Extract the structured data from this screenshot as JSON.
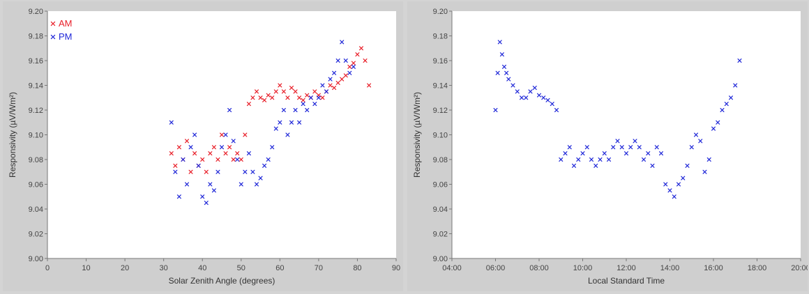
{
  "chart_data": [
    {
      "type": "scatter",
      "xlabel": "Solar Zenith Angle (degrees)",
      "ylabel": "Responsivity (µV/Wm²)",
      "xlim": [
        0,
        90
      ],
      "ylim": [
        9.0,
        9.2
      ],
      "xticks": [
        "0",
        "10",
        "20",
        "30",
        "40",
        "50",
        "60",
        "70",
        "80",
        "90"
      ],
      "yticks": [
        "9.00",
        "9.02",
        "9.04",
        "9.06",
        "9.08",
        "9.10",
        "9.12",
        "9.14",
        "9.16",
        "9.18",
        "9.20"
      ],
      "legend": "top-left",
      "grid": false,
      "series": [
        {
          "name": "AM",
          "color": "#e8202a",
          "marker": "x",
          "points": [
            [
              32,
              9.085
            ],
            [
              33,
              9.075
            ],
            [
              34,
              9.09
            ],
            [
              35,
              9.08
            ],
            [
              36,
              9.095
            ],
            [
              37,
              9.07
            ],
            [
              38,
              9.085
            ],
            [
              39,
              9.075
            ],
            [
              40,
              9.08
            ],
            [
              41,
              9.07
            ],
            [
              42,
              9.085
            ],
            [
              43,
              9.09
            ],
            [
              44,
              9.08
            ],
            [
              45,
              9.1
            ],
            [
              46,
              9.085
            ],
            [
              47,
              9.09
            ],
            [
              48,
              9.08
            ],
            [
              49,
              9.085
            ],
            [
              50,
              9.08
            ],
            [
              51,
              9.1
            ],
            [
              52,
              9.125
            ],
            [
              53,
              9.13
            ],
            [
              54,
              9.135
            ],
            [
              55,
              9.13
            ],
            [
              56,
              9.128
            ],
            [
              57,
              9.132
            ],
            [
              58,
              9.13
            ],
            [
              59,
              9.135
            ],
            [
              60,
              9.14
            ],
            [
              61,
              9.135
            ],
            [
              62,
              9.13
            ],
            [
              63,
              9.138
            ],
            [
              64,
              9.135
            ],
            [
              65,
              9.13
            ],
            [
              66,
              9.128
            ],
            [
              67,
              9.132
            ],
            [
              68,
              9.13
            ],
            [
              69,
              9.135
            ],
            [
              70,
              9.132
            ],
            [
              71,
              9.13
            ],
            [
              72,
              9.135
            ],
            [
              73,
              9.14
            ],
            [
              74,
              9.138
            ],
            [
              75,
              9.142
            ],
            [
              76,
              9.145
            ],
            [
              77,
              9.148
            ],
            [
              78,
              9.155
            ],
            [
              79,
              9.158
            ],
            [
              80,
              9.165
            ],
            [
              81,
              9.17
            ],
            [
              82,
              9.16
            ],
            [
              83,
              9.14
            ]
          ]
        },
        {
          "name": "PM",
          "color": "#2028d8",
          "marker": "x",
          "points": [
            [
              32,
              9.11
            ],
            [
              33,
              9.07
            ],
            [
              34,
              9.05
            ],
            [
              35,
              9.08
            ],
            [
              36,
              9.06
            ],
            [
              37,
              9.09
            ],
            [
              38,
              9.1
            ],
            [
              39,
              9.075
            ],
            [
              40,
              9.05
            ],
            [
              41,
              9.045
            ],
            [
              42,
              9.06
            ],
            [
              43,
              9.055
            ],
            [
              44,
              9.07
            ],
            [
              45,
              9.09
            ],
            [
              46,
              9.1
            ],
            [
              47,
              9.12
            ],
            [
              48,
              9.095
            ],
            [
              49,
              9.08
            ],
            [
              50,
              9.06
            ],
            [
              51,
              9.07
            ],
            [
              52,
              9.085
            ],
            [
              53,
              9.07
            ],
            [
              54,
              9.06
            ],
            [
              55,
              9.065
            ],
            [
              56,
              9.075
            ],
            [
              57,
              9.08
            ],
            [
              58,
              9.09
            ],
            [
              59,
              9.105
            ],
            [
              60,
              9.11
            ],
            [
              61,
              9.12
            ],
            [
              62,
              9.1
            ],
            [
              63,
              9.11
            ],
            [
              64,
              9.12
            ],
            [
              65,
              9.11
            ],
            [
              66,
              9.125
            ],
            [
              67,
              9.12
            ],
            [
              68,
              9.13
            ],
            [
              69,
              9.125
            ],
            [
              70,
              9.13
            ],
            [
              71,
              9.14
            ],
            [
              72,
              9.135
            ],
            [
              73,
              9.145
            ],
            [
              74,
              9.15
            ],
            [
              75,
              9.16
            ],
            [
              76,
              9.175
            ],
            [
              77,
              9.16
            ],
            [
              78,
              9.15
            ],
            [
              79,
              9.155
            ]
          ]
        }
      ]
    },
    {
      "type": "scatter",
      "xlabel": "Local Standard Time",
      "ylabel": "Responsivity (µV/Wm²)",
      "xlim": [
        4,
        20
      ],
      "ylim": [
        9.0,
        9.2
      ],
      "xticks": [
        "04:00",
        "06:00",
        "08:00",
        "10:00",
        "12:00",
        "14:00",
        "16:00",
        "18:00",
        "20:00"
      ],
      "yticks": [
        "9.00",
        "9.02",
        "9.04",
        "9.06",
        "9.08",
        "9.10",
        "9.12",
        "9.14",
        "9.16",
        "9.18",
        "9.20"
      ],
      "grid": false,
      "series": [
        {
          "color": "#2028d8",
          "marker": "x",
          "points": [
            [
              6.0,
              9.12
            ],
            [
              6.1,
              9.15
            ],
            [
              6.2,
              9.175
            ],
            [
              6.3,
              9.165
            ],
            [
              6.4,
              9.155
            ],
            [
              6.5,
              9.15
            ],
            [
              6.6,
              9.145
            ],
            [
              6.8,
              9.14
            ],
            [
              7.0,
              9.135
            ],
            [
              7.2,
              9.13
            ],
            [
              7.4,
              9.13
            ],
            [
              7.6,
              9.135
            ],
            [
              7.8,
              9.138
            ],
            [
              8.0,
              9.132
            ],
            [
              8.2,
              9.13
            ],
            [
              8.4,
              9.128
            ],
            [
              8.6,
              9.125
            ],
            [
              8.8,
              9.12
            ],
            [
              9.0,
              9.08
            ],
            [
              9.2,
              9.085
            ],
            [
              9.4,
              9.09
            ],
            [
              9.6,
              9.075
            ],
            [
              9.8,
              9.08
            ],
            [
              10.0,
              9.085
            ],
            [
              10.2,
              9.09
            ],
            [
              10.4,
              9.08
            ],
            [
              10.6,
              9.075
            ],
            [
              10.8,
              9.08
            ],
            [
              11.0,
              9.085
            ],
            [
              11.2,
              9.08
            ],
            [
              11.4,
              9.09
            ],
            [
              11.6,
              9.095
            ],
            [
              11.8,
              9.09
            ],
            [
              12.0,
              9.085
            ],
            [
              12.2,
              9.09
            ],
            [
              12.4,
              9.095
            ],
            [
              12.6,
              9.09
            ],
            [
              12.8,
              9.08
            ],
            [
              13.0,
              9.085
            ],
            [
              13.2,
              9.075
            ],
            [
              13.4,
              9.09
            ],
            [
              13.6,
              9.085
            ],
            [
              13.8,
              9.06
            ],
            [
              14.0,
              9.055
            ],
            [
              14.2,
              9.05
            ],
            [
              14.4,
              9.06
            ],
            [
              14.6,
              9.065
            ],
            [
              14.8,
              9.075
            ],
            [
              15.0,
              9.09
            ],
            [
              15.2,
              9.1
            ],
            [
              15.4,
              9.095
            ],
            [
              15.6,
              9.07
            ],
            [
              15.8,
              9.08
            ],
            [
              16.0,
              9.105
            ],
            [
              16.2,
              9.11
            ],
            [
              16.4,
              9.12
            ],
            [
              16.6,
              9.125
            ],
            [
              16.8,
              9.13
            ],
            [
              17.0,
              9.14
            ],
            [
              17.2,
              9.16
            ]
          ]
        }
      ]
    }
  ]
}
